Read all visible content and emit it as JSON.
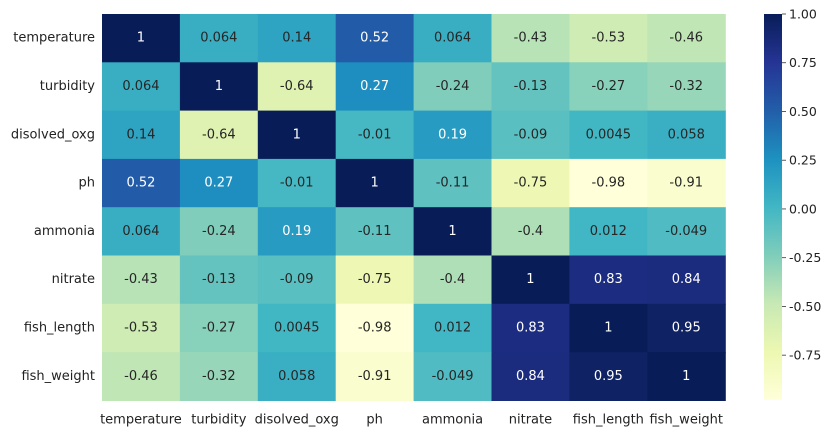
{
  "chart_data": {
    "type": "heatmap",
    "title": "",
    "xlabel": "",
    "ylabel": "",
    "rows": [
      "temperature",
      "turbidity",
      "disolved_oxg",
      "ph",
      "ammonia",
      "nitrate",
      "fish_length",
      "fish_weight"
    ],
    "columns": [
      "temperature",
      "turbidity",
      "disolved_oxg",
      "ph",
      "ammonia",
      "nitrate",
      "fish_length",
      "fish_weight"
    ],
    "values": [
      [
        1,
        0.064,
        0.14,
        0.52,
        0.064,
        -0.43,
        -0.53,
        -0.46
      ],
      [
        0.064,
        1,
        -0.64,
        0.27,
        -0.24,
        -0.13,
        -0.27,
        -0.32
      ],
      [
        0.14,
        -0.64,
        1,
        -0.01,
        0.19,
        -0.09,
        0.0045,
        0.058
      ],
      [
        0.52,
        0.27,
        -0.01,
        1,
        -0.11,
        -0.75,
        -0.98,
        -0.91
      ],
      [
        0.064,
        -0.24,
        0.19,
        -0.11,
        1,
        -0.4,
        0.012,
        -0.049
      ],
      [
        -0.43,
        -0.13,
        -0.09,
        -0.75,
        -0.4,
        1,
        0.83,
        0.84
      ],
      [
        -0.53,
        -0.27,
        0.0045,
        -0.98,
        0.012,
        0.83,
        1,
        0.95
      ],
      [
        -0.46,
        -0.32,
        0.058,
        -0.91,
        -0.049,
        0.84,
        0.95,
        1
      ]
    ],
    "annotations": [
      [
        "1",
        "0.064",
        "0.14",
        "0.52",
        "0.064",
        "-0.43",
        "-0.53",
        "-0.46"
      ],
      [
        "0.064",
        "1",
        "-0.64",
        "0.27",
        "-0.24",
        "-0.13",
        "-0.27",
        "-0.32"
      ],
      [
        "0.14",
        "-0.64",
        "1",
        "-0.01",
        "0.19",
        "-0.09",
        "0.0045",
        "0.058"
      ],
      [
        "0.52",
        "0.27",
        "-0.01",
        "1",
        "-0.11",
        "-0.75",
        "-0.98",
        "-0.91"
      ],
      [
        "0.064",
        "-0.24",
        "0.19",
        "-0.11",
        "1",
        "-0.4",
        "0.012",
        "-0.049"
      ],
      [
        "-0.43",
        "-0.13",
        "-0.09",
        "-0.75",
        "-0.4",
        "1",
        "0.83",
        "0.84"
      ],
      [
        "-0.53",
        "-0.27",
        "0.0045",
        "-0.98",
        "0.012",
        "0.83",
        "1",
        "0.95"
      ],
      [
        "-0.46",
        "-0.32",
        "0.058",
        "-0.91",
        "-0.049",
        "0.84",
        "0.95",
        "1"
      ]
    ],
    "colormap": "YlGnBu",
    "color_range": [
      -0.98,
      1
    ],
    "colorbar_ticks": [
      "1.00",
      "0.75",
      "0.50",
      "0.25",
      "0.00",
      "-0.25",
      "-0.50",
      "-0.75"
    ],
    "colorbar_tick_values": [
      1.0,
      0.75,
      0.5,
      0.25,
      0.0,
      -0.25,
      -0.5,
      -0.75
    ],
    "colors": {
      "annotation_dark_text": "#262626",
      "annotation_light_text": "#ffffff",
      "tick_text": "#222222"
    }
  }
}
